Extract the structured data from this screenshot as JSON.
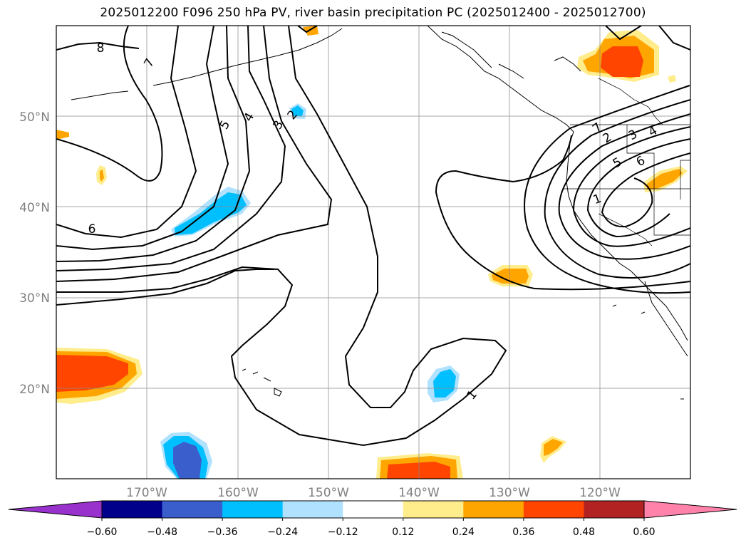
{
  "title": "2025012200 F096 250 hPa PV, river basin precipitation PC (2025012400 - 2025012700)",
  "axes": {
    "lon_labels": [
      "170°W",
      "160°W",
      "150°W",
      "140°W",
      "130°W",
      "120°W"
    ],
    "lat_labels": [
      "50°N",
      "40°N",
      "30°N",
      "20°N"
    ]
  },
  "contour_labels": [
    "8",
    "7",
    "6",
    "5",
    "4",
    "3",
    "2",
    "1",
    "7",
    "2",
    "3",
    "4",
    "5",
    "6",
    "1"
  ],
  "colorbar": {
    "ticks": [
      "−0.60",
      "−0.48",
      "−0.36",
      "−0.24",
      "−0.12",
      "0.12",
      "0.24",
      "0.36",
      "0.48",
      "0.60"
    ],
    "colors": [
      "#9932CC",
      "#00008B",
      "#3A5FCD",
      "#00BFFF",
      "#B0E2FF",
      "#FFFFFF",
      "#FFEC8B",
      "#FFA500",
      "#FF4500",
      "#B22222",
      "#FF82AB"
    ]
  }
}
